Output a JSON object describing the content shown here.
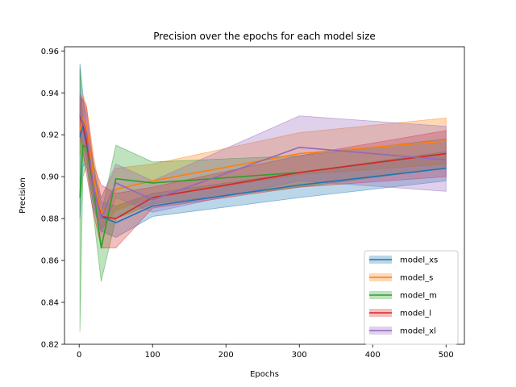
{
  "chart_data": {
    "type": "line",
    "title": "Precision over the epochs for each model size",
    "xlabel": "Epochs",
    "ylabel": "Precision",
    "xlim": [
      -20,
      525
    ],
    "ylim": [
      0.82,
      0.962
    ],
    "xticks": [
      0,
      100,
      200,
      300,
      400,
      500
    ],
    "yticks": [
      0.82,
      0.84,
      0.86,
      0.88,
      0.9,
      0.92,
      0.94,
      0.96
    ],
    "ytick_labels": [
      "0.82",
      "0.84",
      "0.86",
      "0.88",
      "0.90",
      "0.92",
      "0.94",
      "0.96"
    ],
    "grid": false,
    "legend_position": "lower-right",
    "x": [
      1,
      5,
      10,
      20,
      30,
      50,
      100,
      300,
      500
    ],
    "series": [
      {
        "name": "model_xs",
        "color": "#1f77b4",
        "values": [
          0.919,
          0.924,
          0.915,
          0.893,
          0.881,
          0.878,
          0.886,
          0.896,
          0.904
        ],
        "lower": [
          0.88,
          0.905,
          0.906,
          0.885,
          0.874,
          0.871,
          0.881,
          0.89,
          0.898
        ],
        "upper": [
          0.954,
          0.94,
          0.923,
          0.901,
          0.888,
          0.886,
          0.892,
          0.902,
          0.912
        ]
      },
      {
        "name": "model_s",
        "color": "#ff7f0e",
        "values": [
          0.922,
          0.928,
          0.924,
          0.899,
          0.882,
          0.894,
          0.898,
          0.911,
          0.917
        ],
        "lower": [
          0.91,
          0.915,
          0.908,
          0.889,
          0.875,
          0.884,
          0.89,
          0.901,
          0.906
        ],
        "upper": [
          0.935,
          0.939,
          0.934,
          0.909,
          0.89,
          0.904,
          0.906,
          0.921,
          0.928
        ]
      },
      {
        "name": "model_m",
        "color": "#2ca02c",
        "values": [
          0.89,
          0.915,
          0.914,
          0.893,
          0.866,
          0.899,
          0.897,
          0.902,
          0.911
        ],
        "lower": [
          0.826,
          0.9,
          0.905,
          0.88,
          0.85,
          0.88,
          0.887,
          0.895,
          0.904
        ],
        "upper": [
          0.952,
          0.927,
          0.923,
          0.906,
          0.882,
          0.915,
          0.907,
          0.91,
          0.918
        ]
      },
      {
        "name": "model_l",
        "color": "#d62728",
        "values": [
          0.929,
          0.925,
          0.917,
          0.894,
          0.881,
          0.88,
          0.89,
          0.902,
          0.911
        ],
        "lower": [
          0.92,
          0.912,
          0.901,
          0.882,
          0.866,
          0.866,
          0.885,
          0.895,
          0.9
        ],
        "upper": [
          0.938,
          0.937,
          0.933,
          0.905,
          0.896,
          0.892,
          0.895,
          0.91,
          0.922
        ]
      },
      {
        "name": "model_xl",
        "color": "#9467bd",
        "values": [
          0.93,
          0.926,
          0.921,
          0.894,
          0.88,
          0.897,
          0.889,
          0.914,
          0.908
        ],
        "lower": [
          0.92,
          0.916,
          0.91,
          0.885,
          0.873,
          0.89,
          0.883,
          0.898,
          0.893
        ],
        "upper": [
          0.94,
          0.936,
          0.93,
          0.902,
          0.89,
          0.906,
          0.898,
          0.929,
          0.924
        ]
      }
    ]
  }
}
